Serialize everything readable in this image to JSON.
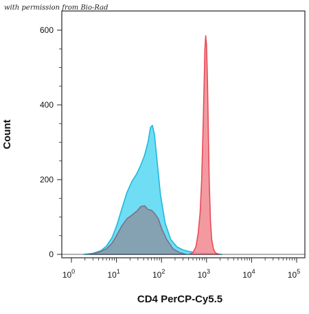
{
  "credit": "with permission from Bio-Rad",
  "chart_data": {
    "type": "area",
    "title": "",
    "xlabel": "CD4 PerCP-Cy5.5",
    "ylabel": "Count",
    "xscale": "log",
    "xlim": [
      1,
      100000
    ],
    "ylim": [
      0,
      650
    ],
    "grid": false,
    "x_ticks": [
      {
        "base": "10",
        "exp": "0"
      },
      {
        "base": "10",
        "exp": "1"
      },
      {
        "base": "10",
        "exp": "2"
      },
      {
        "base": "10",
        "exp": "3"
      },
      {
        "base": "10",
        "exp": "4"
      },
      {
        "base": "10",
        "exp": "5"
      }
    ],
    "y_ticks": [
      "0",
      "200",
      "400",
      "600"
    ],
    "colors": {
      "cyan_fill": "#5fd9f2",
      "cyan_line": "#1fb8dc",
      "gray_fill": "#8a98a6",
      "gray_line": "#7a6f86",
      "red_fill": "#f28f96",
      "red_line": "#e84a56"
    },
    "series": [
      {
        "x": [
          1.9,
          3,
          4.5,
          6,
          8,
          10,
          13,
          17,
          22,
          28,
          35,
          42,
          50,
          57,
          63,
          70,
          80,
          95,
          120,
          160,
          220,
          300,
          400,
          550,
          750,
          1000,
          1500,
          2200
        ],
        "values": [
          0,
          3,
          10,
          22,
          45,
          75,
          120,
          165,
          195,
          215,
          240,
          265,
          300,
          340,
          345,
          320,
          250,
          160,
          85,
          40,
          20,
          12,
          8,
          5,
          4,
          3,
          2,
          0
        ],
        "color": "cyan"
      },
      {
        "x": [
          2.5,
          4,
          6,
          8,
          10,
          13,
          17,
          22,
          28,
          35,
          42,
          50,
          60,
          70,
          85,
          100,
          130,
          180,
          250,
          350
        ],
        "values": [
          0,
          5,
          15,
          30,
          50,
          75,
          95,
          105,
          115,
          128,
          130,
          120,
          118,
          110,
          95,
          70,
          40,
          15,
          5,
          0
        ],
        "color": "gray"
      },
      {
        "x": [
          420,
          500,
          580,
          650,
          720,
          780,
          830,
          880,
          920,
          960,
          1000,
          1050,
          1100,
          1150,
          1220,
          1300,
          1420,
          1550,
          1700,
          1900
        ],
        "values": [
          0,
          5,
          20,
          55,
          110,
          200,
          320,
          450,
          550,
          585,
          560,
          460,
          320,
          190,
          90,
          40,
          15,
          5,
          2,
          0
        ],
        "color": "red"
      }
    ]
  }
}
